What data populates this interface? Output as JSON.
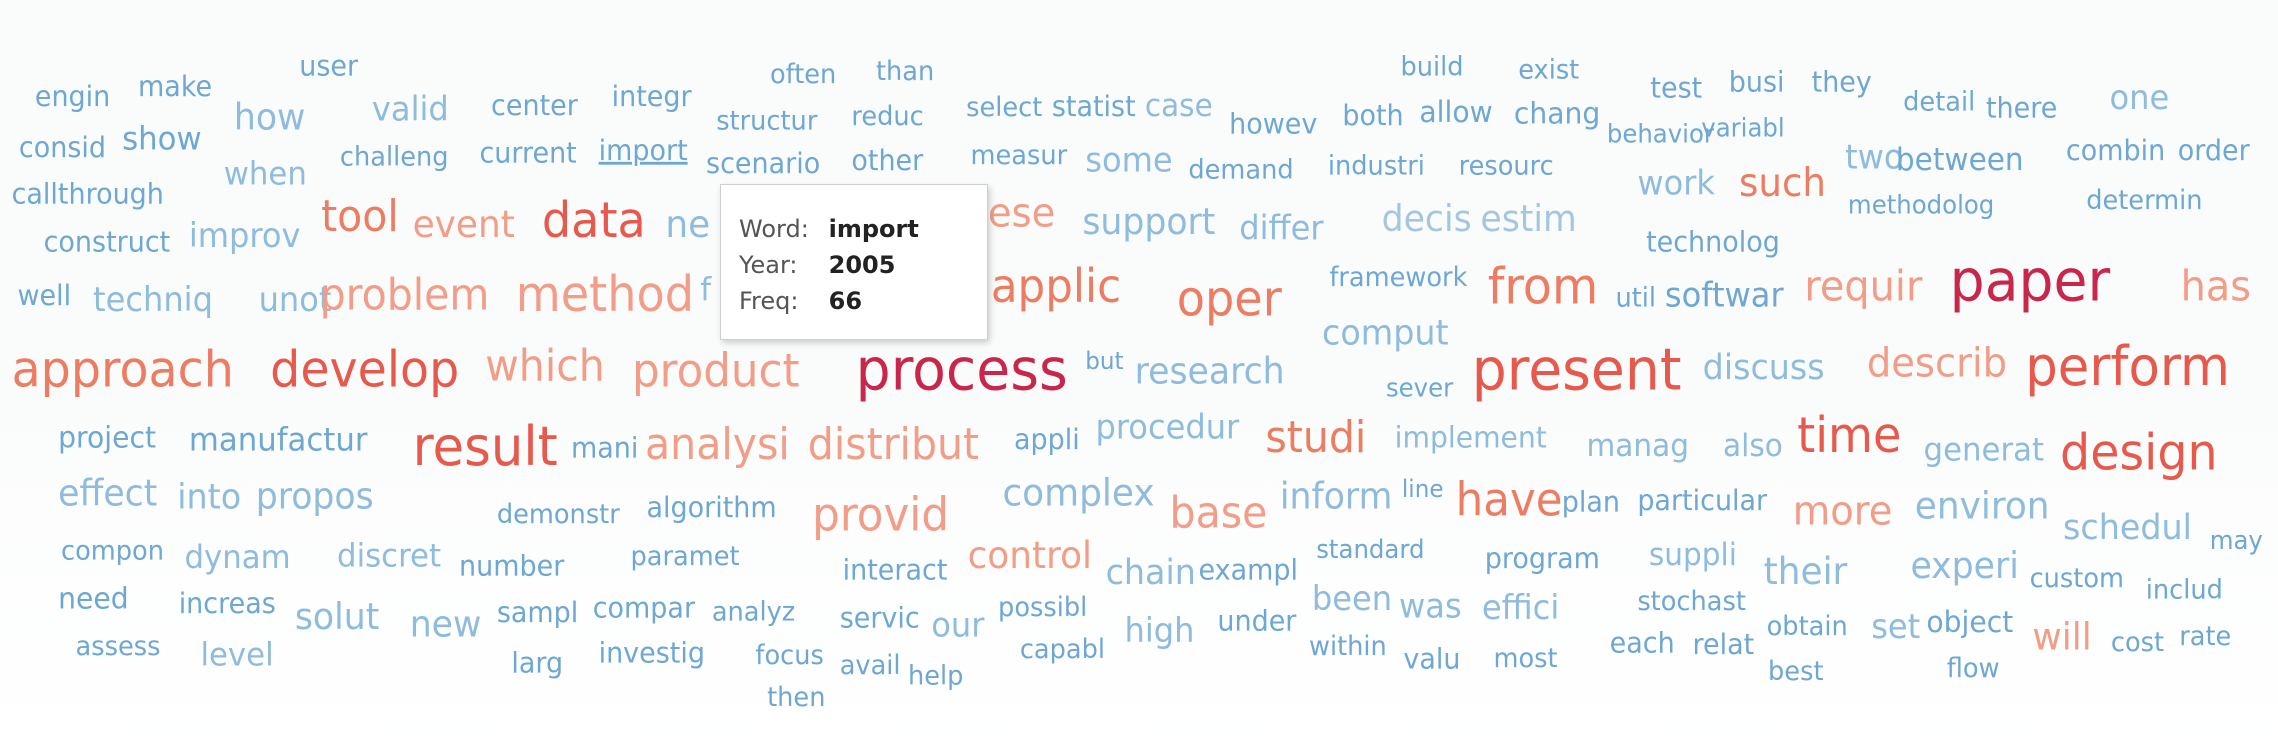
{
  "chart_data": {
    "type": "word_cloud",
    "color_scale": {
      "low": "#9ecae1",
      "mid": "#e9e3e3",
      "high": "#d0153a"
    },
    "hovered_word": "import",
    "words": [
      {
        "text": "engin",
        "tone": "b3"
      },
      {
        "text": "make",
        "tone": "b3"
      },
      {
        "text": "user",
        "tone": "b3"
      },
      {
        "text": "often",
        "tone": "b3"
      },
      {
        "text": "than",
        "tone": "b3"
      },
      {
        "text": "build",
        "tone": "b3"
      },
      {
        "text": "exist",
        "tone": "b3"
      },
      {
        "text": "test",
        "tone": "b3"
      },
      {
        "text": "busi",
        "tone": "b3"
      },
      {
        "text": "they",
        "tone": "b3"
      },
      {
        "text": "consid",
        "tone": "b3"
      },
      {
        "text": "show",
        "tone": "b3"
      },
      {
        "text": "how",
        "tone": "b2"
      },
      {
        "text": "valid",
        "tone": "b2"
      },
      {
        "text": "center",
        "tone": "b3"
      },
      {
        "text": "integr",
        "tone": "b3"
      },
      {
        "text": "structur",
        "tone": "b3"
      },
      {
        "text": "reduc",
        "tone": "b3"
      },
      {
        "text": "select",
        "tone": "b3"
      },
      {
        "text": "statist",
        "tone": "b3"
      },
      {
        "text": "case",
        "tone": "b2"
      },
      {
        "text": "howev",
        "tone": "b3"
      },
      {
        "text": "both",
        "tone": "b3"
      },
      {
        "text": "allow",
        "tone": "b3"
      },
      {
        "text": "chang",
        "tone": "b3"
      },
      {
        "text": "detail",
        "tone": "b3"
      },
      {
        "text": "there",
        "tone": "b3"
      },
      {
        "text": "one",
        "tone": "b2"
      },
      {
        "text": "behavior",
        "tone": "b3"
      },
      {
        "text": "variabl",
        "tone": "b3"
      },
      {
        "text": "callthrough",
        "tone": "b3"
      },
      {
        "text": "when",
        "tone": "b2"
      },
      {
        "text": "challeng",
        "tone": "b3"
      },
      {
        "text": "current",
        "tone": "b3"
      },
      {
        "text": "import",
        "tone": "b3"
      },
      {
        "text": "scenario",
        "tone": "b3"
      },
      {
        "text": "other",
        "tone": "b3"
      },
      {
        "text": "measur",
        "tone": "b3"
      },
      {
        "text": "some",
        "tone": "b2"
      },
      {
        "text": "demand",
        "tone": "b3"
      },
      {
        "text": "industri",
        "tone": "b3"
      },
      {
        "text": "resourc",
        "tone": "b3"
      },
      {
        "text": "two",
        "tone": "b2"
      },
      {
        "text": "between",
        "tone": "b3"
      },
      {
        "text": "combin",
        "tone": "b3"
      },
      {
        "text": "order",
        "tone": "b3"
      },
      {
        "text": "work",
        "tone": "b2"
      },
      {
        "text": "such",
        "tone": "r2"
      },
      {
        "text": "methodolog",
        "tone": "b3"
      },
      {
        "text": "determin",
        "tone": "b3"
      },
      {
        "text": "construct",
        "tone": "b3"
      },
      {
        "text": "improv",
        "tone": "b2"
      },
      {
        "text": "tool",
        "tone": "r2"
      },
      {
        "text": "event",
        "tone": "r3"
      },
      {
        "text": "data",
        "tone": "r1"
      },
      {
        "text": "ne",
        "tone": "b2"
      },
      {
        "text": "ese",
        "tone": "r3"
      },
      {
        "text": "support",
        "tone": "b2"
      },
      {
        "text": "differ",
        "tone": "b2"
      },
      {
        "text": "decis",
        "tone": "b1"
      },
      {
        "text": "estim",
        "tone": "b1"
      },
      {
        "text": "technolog",
        "tone": "b3"
      },
      {
        "text": "well",
        "tone": "b3"
      },
      {
        "text": "techniq",
        "tone": "b2"
      },
      {
        "text": "unot",
        "tone": "b2"
      },
      {
        "text": "problem",
        "tone": "r3"
      },
      {
        "text": "method",
        "tone": "r3"
      },
      {
        "text": "f",
        "tone": "b2"
      },
      {
        "text": "applic",
        "tone": "r2"
      },
      {
        "text": "oper",
        "tone": "r2"
      },
      {
        "text": "framework",
        "tone": "b3"
      },
      {
        "text": "from",
        "tone": "r2"
      },
      {
        "text": "util",
        "tone": "b3"
      },
      {
        "text": "softwar",
        "tone": "b3"
      },
      {
        "text": "requir",
        "tone": "r3"
      },
      {
        "text": "paper",
        "tone": "r0"
      },
      {
        "text": "has",
        "tone": "r3"
      },
      {
        "text": "comput",
        "tone": "b2"
      },
      {
        "text": "approach",
        "tone": "r2"
      },
      {
        "text": "develop",
        "tone": "r1"
      },
      {
        "text": "which",
        "tone": "r3"
      },
      {
        "text": "product",
        "tone": "r3"
      },
      {
        "text": "process",
        "tone": "r0"
      },
      {
        "text": "but",
        "tone": "b3"
      },
      {
        "text": "research",
        "tone": "b2"
      },
      {
        "text": "sever",
        "tone": "b3"
      },
      {
        "text": "present",
        "tone": "r1"
      },
      {
        "text": "discuss",
        "tone": "b2"
      },
      {
        "text": "describ",
        "tone": "r3"
      },
      {
        "text": "perform",
        "tone": "r1"
      },
      {
        "text": "project",
        "tone": "b3"
      },
      {
        "text": "manufactur",
        "tone": "b3"
      },
      {
        "text": "result",
        "tone": "r1"
      },
      {
        "text": "mani",
        "tone": "b3"
      },
      {
        "text": "analysi",
        "tone": "r3"
      },
      {
        "text": "distribut",
        "tone": "r3"
      },
      {
        "text": "appli",
        "tone": "b3"
      },
      {
        "text": "procedur",
        "tone": "b2"
      },
      {
        "text": "studi",
        "tone": "r2"
      },
      {
        "text": "implement",
        "tone": "b2"
      },
      {
        "text": "manag",
        "tone": "b2"
      },
      {
        "text": "also",
        "tone": "b2"
      },
      {
        "text": "time",
        "tone": "r1"
      },
      {
        "text": "generat",
        "tone": "b2"
      },
      {
        "text": "design",
        "tone": "r1"
      },
      {
        "text": "effect",
        "tone": "b2"
      },
      {
        "text": "into",
        "tone": "b2"
      },
      {
        "text": "propos",
        "tone": "b2"
      },
      {
        "text": "demonstr",
        "tone": "b3"
      },
      {
        "text": "algorithm",
        "tone": "b3"
      },
      {
        "text": "provid",
        "tone": "r3"
      },
      {
        "text": "complex",
        "tone": "b2"
      },
      {
        "text": "base",
        "tone": "r3"
      },
      {
        "text": "inform",
        "tone": "b2"
      },
      {
        "text": "line",
        "tone": "b3"
      },
      {
        "text": "have",
        "tone": "r2"
      },
      {
        "text": "plan",
        "tone": "b3"
      },
      {
        "text": "particular",
        "tone": "b3"
      },
      {
        "text": "more",
        "tone": "r3"
      },
      {
        "text": "environ",
        "tone": "b2"
      },
      {
        "text": "schedul",
        "tone": "b2"
      },
      {
        "text": "may",
        "tone": "b3"
      },
      {
        "text": "compon",
        "tone": "b3"
      },
      {
        "text": "dynam",
        "tone": "b2"
      },
      {
        "text": "discret",
        "tone": "b2"
      },
      {
        "text": "number",
        "tone": "b3"
      },
      {
        "text": "paramet",
        "tone": "b3"
      },
      {
        "text": "interact",
        "tone": "b3"
      },
      {
        "text": "control",
        "tone": "r3"
      },
      {
        "text": "chain",
        "tone": "b2"
      },
      {
        "text": "exampl",
        "tone": "b3"
      },
      {
        "text": "standard",
        "tone": "b3"
      },
      {
        "text": "program",
        "tone": "b3"
      },
      {
        "text": "suppli",
        "tone": "b2"
      },
      {
        "text": "their",
        "tone": "b2"
      },
      {
        "text": "experi",
        "tone": "b2"
      },
      {
        "text": "custom",
        "tone": "b3"
      },
      {
        "text": "includ",
        "tone": "b3"
      },
      {
        "text": "need",
        "tone": "b3"
      },
      {
        "text": "increas",
        "tone": "b3"
      },
      {
        "text": "solut",
        "tone": "b2"
      },
      {
        "text": "new",
        "tone": "b2"
      },
      {
        "text": "sampl",
        "tone": "b3"
      },
      {
        "text": "compar",
        "tone": "b3"
      },
      {
        "text": "analyz",
        "tone": "b3"
      },
      {
        "text": "servic",
        "tone": "b3"
      },
      {
        "text": "our",
        "tone": "b2"
      },
      {
        "text": "possibl",
        "tone": "b3"
      },
      {
        "text": "high",
        "tone": "b2"
      },
      {
        "text": "under",
        "tone": "b3"
      },
      {
        "text": "been",
        "tone": "b2"
      },
      {
        "text": "was",
        "tone": "b2"
      },
      {
        "text": "effici",
        "tone": "b2"
      },
      {
        "text": "stochast",
        "tone": "b3"
      },
      {
        "text": "obtain",
        "tone": "b3"
      },
      {
        "text": "set",
        "tone": "b2"
      },
      {
        "text": "object",
        "tone": "b3"
      },
      {
        "text": "will",
        "tone": "r3"
      },
      {
        "text": "cost",
        "tone": "b3"
      },
      {
        "text": "rate",
        "tone": "b3"
      },
      {
        "text": "assess",
        "tone": "b3"
      },
      {
        "text": "level",
        "tone": "b2"
      },
      {
        "text": "larg",
        "tone": "b3"
      },
      {
        "text": "investig",
        "tone": "b3"
      },
      {
        "text": "focus",
        "tone": "b3"
      },
      {
        "text": "avail",
        "tone": "b3"
      },
      {
        "text": "help",
        "tone": "b3"
      },
      {
        "text": "capabl",
        "tone": "b3"
      },
      {
        "text": "within",
        "tone": "b3"
      },
      {
        "text": "valu",
        "tone": "b3"
      },
      {
        "text": "most",
        "tone": "b3"
      },
      {
        "text": "each",
        "tone": "b3"
      },
      {
        "text": "relat",
        "tone": "b3"
      },
      {
        "text": "best",
        "tone": "b3"
      },
      {
        "text": "flow",
        "tone": "b3"
      },
      {
        "text": "then",
        "tone": "b3"
      }
    ],
    "tone_colors": {
      "r0": "#c8264a",
      "r1": "#e8594d",
      "r2": "#ec7c62",
      "r3": "#f19d87",
      "b1": "#a6c6e0",
      "b2": "#8fbbdc",
      "b3": "#6ea7d2"
    }
  },
  "tooltip": {
    "word_label": "Word:",
    "word_value": "import",
    "year_label": "Year:",
    "year_value": "2005",
    "freq_label": "Freq:",
    "freq_value": "66"
  }
}
